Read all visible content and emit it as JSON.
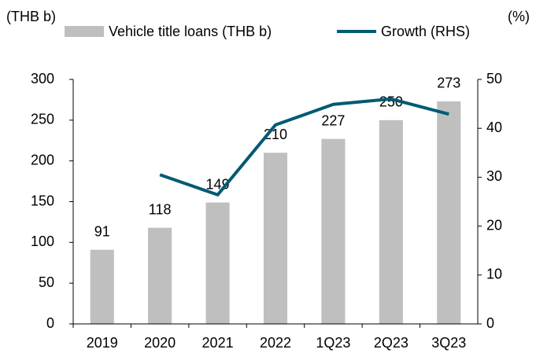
{
  "chart_data": {
    "type": "bar_line",
    "y_label": "(THB b)",
    "y2_label": "(%)",
    "categories": [
      "2019",
      "2020",
      "2021",
      "2022",
      "1Q23",
      "2Q23",
      "3Q23"
    ],
    "series": [
      {
        "name": "Vehicle title loans (THB b)",
        "type": "bar",
        "color": "#bfbfbf",
        "values": [
          91,
          118,
          149,
          210,
          227,
          250,
          273
        ]
      },
      {
        "name": "Growth (RHS)",
        "type": "line",
        "axis": "y2",
        "color": "#005a73",
        "values": [
          null,
          30.5,
          26.4,
          40.7,
          44.9,
          46.0,
          42.9
        ]
      }
    ],
    "ylim": [
      0,
      300
    ],
    "yticks": [
      0,
      50,
      100,
      150,
      200,
      250,
      300
    ],
    "y2lim": [
      0,
      50
    ],
    "y2ticks": [
      0,
      10,
      20,
      30,
      40,
      50
    ],
    "grid": false
  }
}
